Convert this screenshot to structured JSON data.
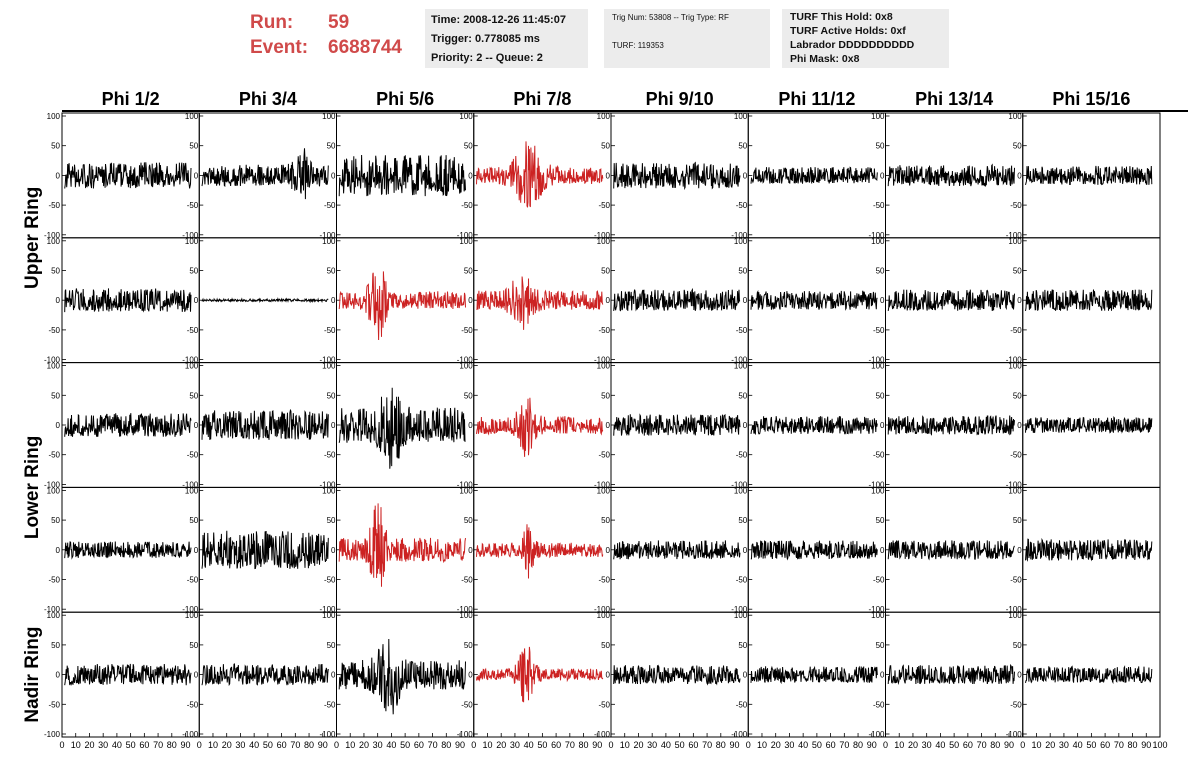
{
  "header": {
    "run_label": "Run:",
    "run_value": "59",
    "event_label": "Event:",
    "event_value": "6688744",
    "time": "Time: 2008-12-26 11:45:07",
    "trigger": "Trigger: 0.778085 ms",
    "priority": "Priority: 2 -- Queue: 2",
    "trig_num": "Trig Num: 53808 -- Trig Type: RF",
    "turf": "TURF: 119353",
    "turf_this_hold": "TURF This Hold: 0x8",
    "turf_active_holds": "TURF Active Holds: 0xf",
    "labrador": "Labrador DDDDDDDDDD",
    "phi_mask": "Phi Mask: 0x8"
  },
  "colors": {
    "highlight": "#cc2222",
    "normal": "#000000",
    "header_text": "#d04a4a",
    "box_bg": "#ececec"
  },
  "chart_data": {
    "type": "line",
    "columns": [
      "Phi 1/2",
      "Phi 3/4",
      "Phi 5/6",
      "Phi 7/8",
      "Phi 9/10",
      "Phi 11/12",
      "Phi 13/14",
      "Phi 15/16"
    ],
    "ring_labels": [
      {
        "label": "Upper Ring",
        "rows": [
          0,
          1
        ]
      },
      {
        "label": "Lower Ring",
        "rows": [
          2,
          3
        ]
      },
      {
        "label": "Nadir Ring",
        "rows": [
          4
        ]
      }
    ],
    "xlim": [
      0,
      100
    ],
    "ylim": [
      -100,
      100
    ],
    "x_tick_labels": [
      "0",
      "10",
      "20",
      "30",
      "40",
      "50",
      "60",
      "70",
      "80",
      "90",
      "100"
    ],
    "y_tick_labels": [
      "100",
      "50",
      "0",
      "-50",
      "-100"
    ],
    "highlighted_panels": [
      [
        0,
        3
      ],
      [
        1,
        2
      ],
      [
        1,
        3
      ],
      [
        2,
        3
      ],
      [
        3,
        2
      ],
      [
        3,
        3
      ],
      [
        4,
        3
      ]
    ],
    "waveforms": [
      [
        {
          "amp": 22,
          "pulse": null
        },
        {
          "amp": 18,
          "pulse": {
            "center": 75,
            "height": 30,
            "width": 6
          }
        },
        {
          "amp": 35,
          "pulse": null
        },
        {
          "amp": 15,
          "pulse": {
            "center": 40,
            "height": 45,
            "width": 10
          }
        },
        {
          "amp": 22,
          "pulse": null
        },
        {
          "amp": 14,
          "pulse": null
        },
        {
          "amp": 18,
          "pulse": null
        },
        {
          "amp": 16,
          "pulse": null
        }
      ],
      [
        {
          "amp": 20,
          "pulse": null
        },
        {
          "amp": 2,
          "pulse": null
        },
        {
          "amp": 15,
          "pulse": {
            "center": 30,
            "height": 60,
            "width": 6
          }
        },
        {
          "amp": 16,
          "pulse": {
            "center": 35,
            "height": 35,
            "width": 8
          }
        },
        {
          "amp": 18,
          "pulse": null
        },
        {
          "amp": 16,
          "pulse": null
        },
        {
          "amp": 18,
          "pulse": null
        },
        {
          "amp": 18,
          "pulse": null
        }
      ],
      [
        {
          "amp": 20,
          "pulse": null
        },
        {
          "amp": 25,
          "pulse": null
        },
        {
          "amp": 30,
          "pulse": {
            "center": 40,
            "height": 45,
            "width": 8
          }
        },
        {
          "amp": 15,
          "pulse": {
            "center": 38,
            "height": 40,
            "width": 6
          }
        },
        {
          "amp": 18,
          "pulse": null
        },
        {
          "amp": 15,
          "pulse": null
        },
        {
          "amp": 16,
          "pulse": null
        },
        {
          "amp": 13,
          "pulse": null
        }
      ],
      [
        {
          "amp": 14,
          "pulse": null
        },
        {
          "amp": 32,
          "pulse": null
        },
        {
          "amp": 20,
          "pulse": {
            "center": 30,
            "height": 70,
            "width": 5
          }
        },
        {
          "amp": 12,
          "pulse": {
            "center": 40,
            "height": 40,
            "width": 4
          }
        },
        {
          "amp": 16,
          "pulse": null
        },
        {
          "amp": 16,
          "pulse": null
        },
        {
          "amp": 16,
          "pulse": null
        },
        {
          "amp": 18,
          "pulse": null
        }
      ],
      [
        {
          "amp": 18,
          "pulse": null
        },
        {
          "amp": 18,
          "pulse": null
        },
        {
          "amp": 25,
          "pulse": {
            "center": 38,
            "height": 50,
            "width": 8
          }
        },
        {
          "amp": 10,
          "pulse": {
            "center": 38,
            "height": 45,
            "width": 6
          }
        },
        {
          "amp": 16,
          "pulse": null
        },
        {
          "amp": 14,
          "pulse": null
        },
        {
          "amp": 16,
          "pulse": null
        },
        {
          "amp": 14,
          "pulse": null
        }
      ]
    ]
  }
}
